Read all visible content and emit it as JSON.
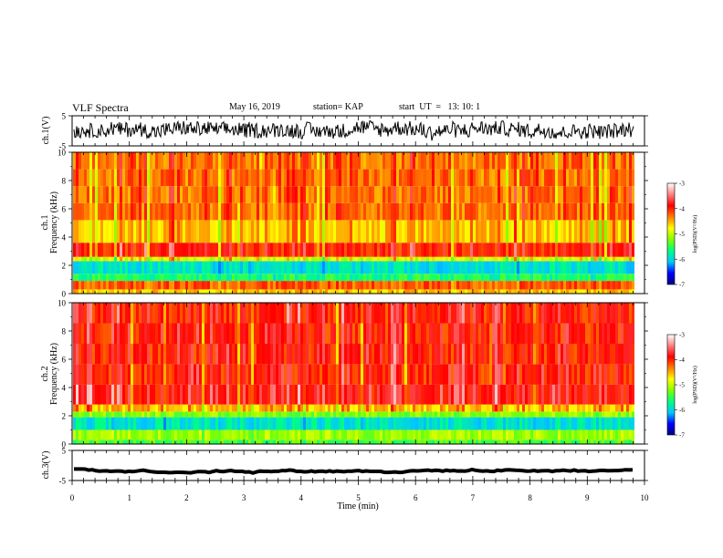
{
  "header": {
    "title": "VLF Spectra",
    "date": "May 16, 2019",
    "station": "station= KAP",
    "start": "start  UT  =   13: 10: 1"
  },
  "chart_data": {
    "type": "heatmap",
    "x_axis": {
      "label": "Time  (min)",
      "range": [
        0,
        10
      ],
      "ticks": [
        0,
        1,
        2,
        3,
        4,
        5,
        6,
        7,
        8,
        9,
        10
      ],
      "data_end": 9.82
    },
    "panels": [
      {
        "id": "ch1-waveform",
        "type": "line",
        "ylabel": "ch.1(V)",
        "ylim": [
          -5,
          5
        ],
        "yticks": [
          -5,
          5
        ],
        "mean_level": 0.3,
        "noise_amplitude": 2.5
      },
      {
        "id": "ch1-spectrogram",
        "type": "heatmap",
        "ylabel_channel": "ch.1",
        "ylabel": "Frequency  (kHz)",
        "ylim": [
          0,
          10
        ],
        "yticks": [
          0,
          2,
          4,
          6,
          8,
          10
        ],
        "bands_khz": [
          {
            "from": 0.0,
            "to": 0.3,
            "level": -4.6
          },
          {
            "from": 0.3,
            "to": 0.9,
            "level": -4.2
          },
          {
            "from": 0.9,
            "to": 1.4,
            "level": -5.6
          },
          {
            "from": 1.4,
            "to": 2.3,
            "level": -5.9
          },
          {
            "from": 2.3,
            "to": 2.6,
            "level": -4.9
          },
          {
            "from": 2.6,
            "to": 3.6,
            "level": -4.0
          },
          {
            "from": 3.6,
            "to": 5.2,
            "level": -4.6
          },
          {
            "from": 5.2,
            "to": 10.0,
            "level": -4.3
          }
        ]
      },
      {
        "id": "ch2-spectrogram",
        "type": "heatmap",
        "ylabel_channel": "ch.2",
        "ylabel": "Frequency  (kHz)",
        "ylim": [
          0,
          10
        ],
        "yticks": [
          0,
          2,
          4,
          6,
          8,
          10
        ],
        "bands_khz": [
          {
            "from": 0.0,
            "to": 0.3,
            "level": -5.4
          },
          {
            "from": 0.3,
            "to": 1.0,
            "level": -5.1
          },
          {
            "from": 1.0,
            "to": 1.9,
            "level": -5.9
          },
          {
            "from": 1.9,
            "to": 2.3,
            "level": -5.2
          },
          {
            "from": 2.3,
            "to": 2.8,
            "level": -4.6
          },
          {
            "from": 2.8,
            "to": 4.2,
            "level": -3.9
          },
          {
            "from": 4.2,
            "to": 10.0,
            "level": -4.0
          }
        ]
      },
      {
        "id": "ch3-waveform",
        "type": "line",
        "ylabel": "ch.3(V)",
        "ylim": [
          -5,
          5
        ],
        "yticks": [
          -5,
          5
        ],
        "mean_level": -1.5,
        "noise_amplitude": 0.1
      }
    ],
    "colorbar": {
      "label": "log(PSD)(V²/Hz)",
      "range": [
        -7,
        -3
      ],
      "ticks": [
        -3,
        -4,
        -5,
        -6,
        -7
      ],
      "colormap": [
        "#000080",
        "#0000ff",
        "#00c8ff",
        "#00ff80",
        "#80ff00",
        "#ffff00",
        "#ff8000",
        "#ff0000",
        "#ff8080",
        "#ffffff"
      ]
    }
  }
}
